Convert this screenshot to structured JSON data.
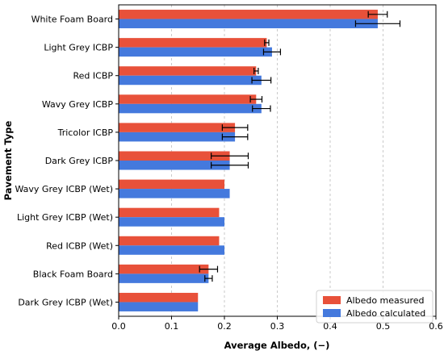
{
  "chart_data": {
    "type": "bar",
    "orientation": "horizontal",
    "title": "",
    "xlabel": "Average Albedo, (−)",
    "ylabel": "Pavement Type",
    "xlim": [
      0.0,
      0.6
    ],
    "xticks": [
      "0.0",
      "0.1",
      "0.2",
      "0.3",
      "0.4",
      "0.5",
      "0.6"
    ],
    "grid": "vertical dashed",
    "legend_position": "bottom-right",
    "categories": [
      "White Foam Board",
      "Light Grey ICBP",
      "Red ICBP",
      "Wavy Grey ICBP",
      "Tricolor ICBP",
      "Dark Grey ICBP",
      "Wavy Grey ICBP (Wet)",
      "Light Grey ICBP (Wet)",
      "Red ICBP (Wet)",
      "Black Foam Board",
      "Dark Grey ICBP (Wet)"
    ],
    "series": [
      {
        "name": "Albedo measured",
        "color": "#e8513a",
        "values": [
          0.49,
          0.28,
          0.26,
          0.26,
          0.22,
          0.21,
          0.2,
          0.19,
          0.19,
          0.17,
          0.15
        ],
        "errors": [
          0.018,
          0.004,
          0.004,
          0.011,
          0.024,
          0.035,
          0.0,
          0.0,
          0.0,
          0.017,
          0.0
        ]
      },
      {
        "name": "Albedo calculated",
        "color": "#4479dd",
        "values": [
          0.49,
          0.29,
          0.27,
          0.27,
          0.22,
          0.21,
          0.21,
          0.2,
          0.2,
          0.17,
          0.15
        ],
        "errors": [
          0.042,
          0.016,
          0.018,
          0.017,
          0.024,
          0.035,
          0.0,
          0.0,
          0.0,
          0.007,
          0.0
        ]
      }
    ]
  }
}
